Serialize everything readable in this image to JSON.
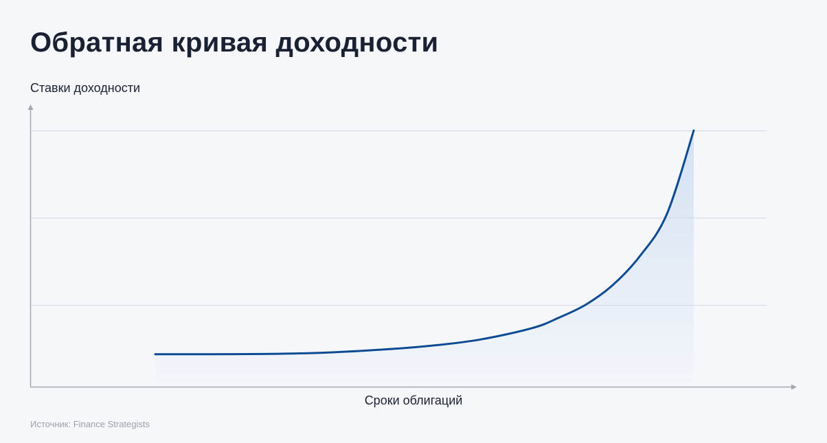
{
  "title": "Обратная кривая доходности",
  "source": "Источник: Finance Strategists",
  "chart_data": {
    "type": "area",
    "title": "Обратная кривая доходности",
    "xlabel": "Сроки облигаций",
    "ylabel": "Ставки доходности",
    "xlim": [
      0,
      1
    ],
    "ylim": [
      0,
      1
    ],
    "x": [
      0.0,
      0.1,
      0.2,
      0.3,
      0.4,
      0.5,
      0.6,
      0.7,
      0.75,
      0.8,
      0.85,
      0.9,
      0.95,
      1.0
    ],
    "values": [
      0.145,
      0.145,
      0.146,
      0.15,
      0.16,
      0.175,
      0.2,
      0.245,
      0.285,
      0.335,
      0.41,
      0.52,
      0.68,
      1.0
    ],
    "gridlines": [
      0.333,
      0.667,
      1.0
    ],
    "grid": true,
    "ticks": false,
    "colors": {
      "line": "#0d4a94",
      "fill": "#c9daef",
      "grid": "#d5d9e1",
      "axis": "#a3a8b1"
    }
  }
}
